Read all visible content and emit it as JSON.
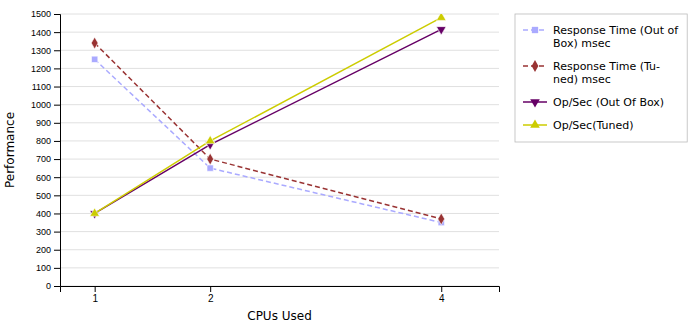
{
  "chart_data": {
    "type": "line",
    "xlabel": "CPUs Used",
    "ylabel": "Performance",
    "x": [
      1,
      2,
      4
    ],
    "xlim": [
      0.7,
      4.5
    ],
    "xticks": [
      1,
      2,
      4
    ],
    "ylim": [
      0,
      1500
    ],
    "yticks": [
      0,
      100,
      200,
      300,
      400,
      500,
      600,
      700,
      800,
      900,
      1000,
      1100,
      1200,
      1300,
      1400,
      1500
    ],
    "grid": "y",
    "legend": "right",
    "series": [
      {
        "name": "Response Time (Out of\nBox) msec",
        "color": "#aaaaff",
        "marker": "square",
        "line_style": "dashed",
        "values": [
          1250,
          650,
          350
        ]
      },
      {
        "name": "Response Time (Tu-\nned) msec",
        "color": "#993333",
        "marker": "diamond",
        "line_style": "dashed",
        "values": [
          1340,
          700,
          370
        ]
      },
      {
        "name": "Op/Sec (Out Of Box)",
        "color": "#660066",
        "marker": "triangle-down",
        "line_style": "solid",
        "values": [
          400,
          780,
          1415
        ]
      },
      {
        "name": "Op/Sec(Tuned)",
        "color": "#cccc00",
        "marker": "triangle-up",
        "line_style": "solid",
        "values": [
          400,
          800,
          1480
        ]
      }
    ]
  }
}
